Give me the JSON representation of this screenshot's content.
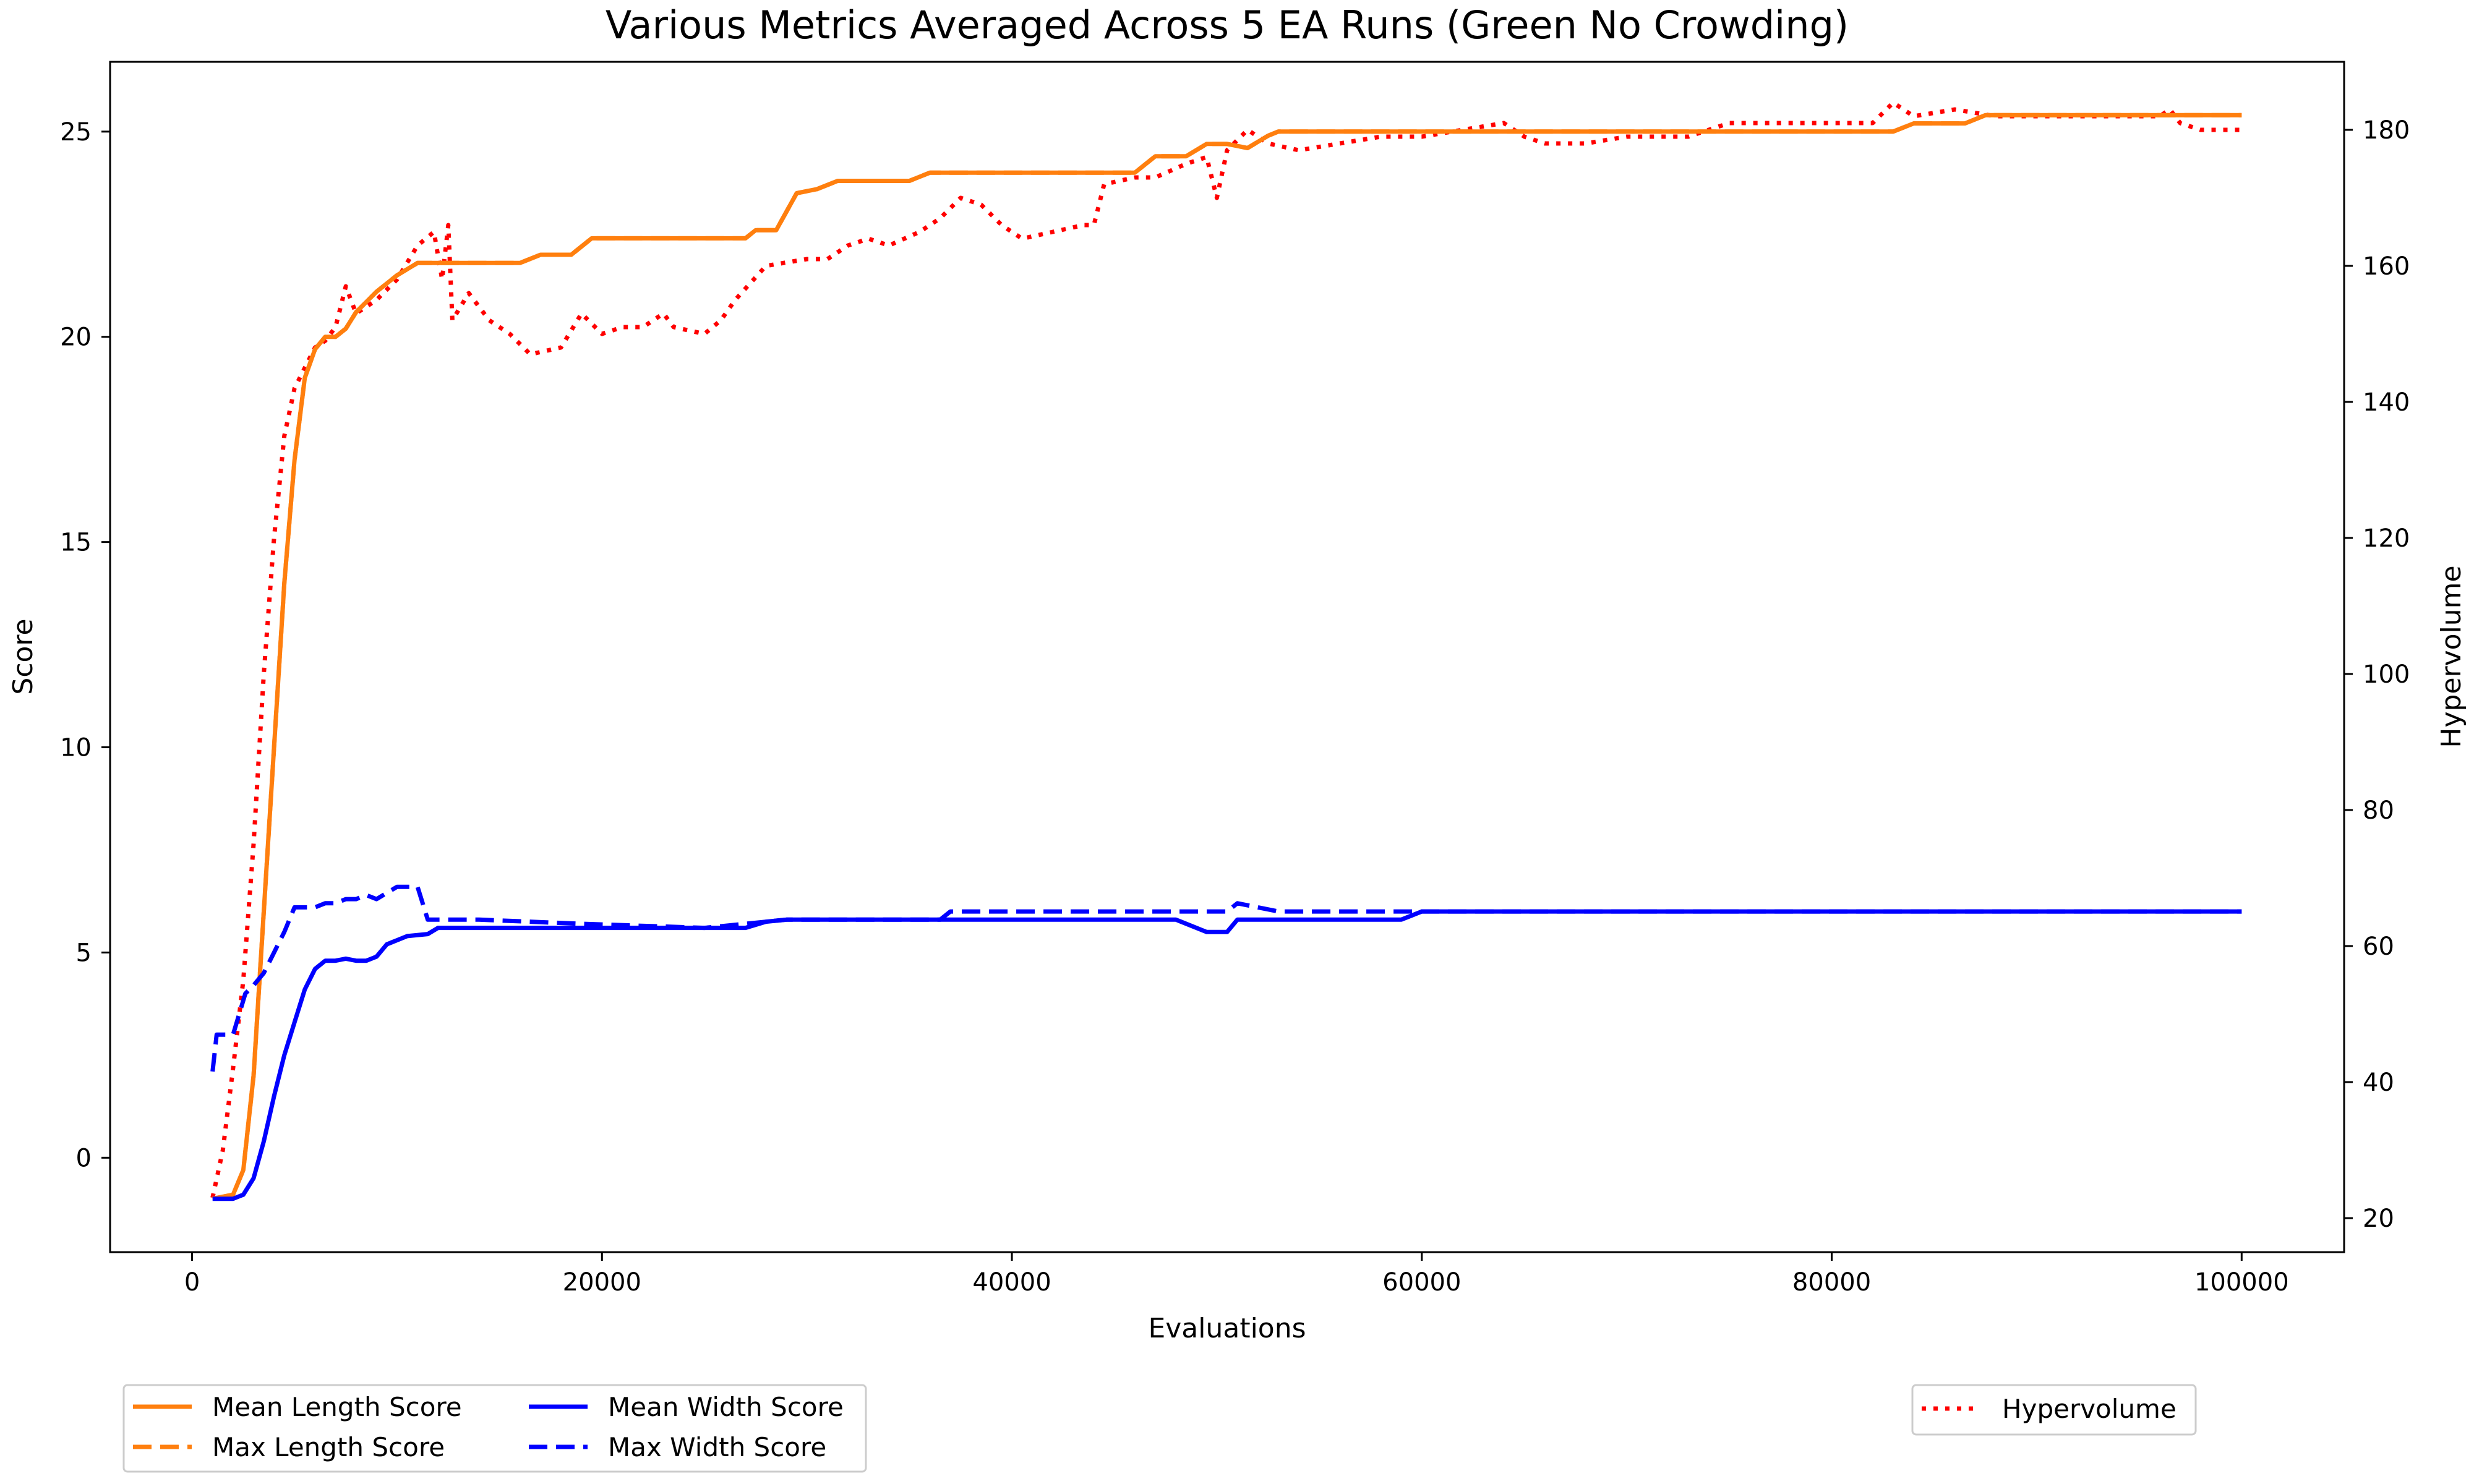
{
  "chart_data": {
    "type": "line",
    "title": "Various Metrics Averaged Across 5 EA Runs (Green No Crowding)",
    "xlabel": "Evaluations",
    "ylabel": "Score",
    "y2label": "Hypervolume",
    "xlim": [
      -4000,
      105000
    ],
    "ylim": [
      -2.3,
      26.7
    ],
    "y2lim": [
      15,
      190
    ],
    "xticks": [
      0,
      20000,
      40000,
      60000,
      80000,
      100000
    ],
    "yticks": [
      0,
      5,
      10,
      15,
      20,
      25
    ],
    "y2ticks": [
      20,
      40,
      60,
      80,
      100,
      120,
      140,
      160,
      180
    ],
    "grid": false,
    "legend_left_placement": "bottom-left, below axes",
    "legend_right_placement": "bottom-right, below axes",
    "series": [
      {
        "name": "Mean Length Score",
        "axis": "left",
        "color": "#ff7f0e",
        "style": "solid",
        "points": [
          [
            1000,
            -1
          ],
          [
            2000,
            -0.9
          ],
          [
            2500,
            -0.3
          ],
          [
            3000,
            2
          ],
          [
            3500,
            6
          ],
          [
            4000,
            10
          ],
          [
            4500,
            14
          ],
          [
            5000,
            17
          ],
          [
            5500,
            19
          ],
          [
            6000,
            19.7
          ],
          [
            6500,
            20
          ],
          [
            7000,
            20
          ],
          [
            7500,
            20.2
          ],
          [
            8000,
            20.6
          ],
          [
            9000,
            21.1
          ],
          [
            10000,
            21.5
          ],
          [
            11000,
            21.8
          ],
          [
            12000,
            21.8
          ],
          [
            14000,
            21.8
          ],
          [
            16000,
            21.8
          ],
          [
            17000,
            22
          ],
          [
            18500,
            22
          ],
          [
            19500,
            22.4
          ],
          [
            27000,
            22.4
          ],
          [
            27500,
            22.6
          ],
          [
            28500,
            22.6
          ],
          [
            29500,
            23.5
          ],
          [
            30500,
            23.6
          ],
          [
            31500,
            23.8
          ],
          [
            35000,
            23.8
          ],
          [
            36000,
            24
          ],
          [
            46000,
            24
          ],
          [
            47000,
            24.4
          ],
          [
            48500,
            24.4
          ],
          [
            49500,
            24.7
          ],
          [
            50500,
            24.7
          ],
          [
            51500,
            24.6
          ],
          [
            52500,
            24.9
          ],
          [
            53000,
            25
          ],
          [
            82000,
            25
          ],
          [
            83000,
            25
          ],
          [
            84000,
            25.2
          ],
          [
            86500,
            25.2
          ],
          [
            87500,
            25.4
          ],
          [
            100000,
            25.4
          ]
        ]
      },
      {
        "name": "Max Length Score",
        "axis": "left",
        "color": "#ff7f0e",
        "style": "dashed",
        "points": [
          [
            1000,
            -1
          ],
          [
            2000,
            -0.9
          ],
          [
            2500,
            -0.3
          ],
          [
            3000,
            2
          ],
          [
            3500,
            6
          ],
          [
            4000,
            10
          ],
          [
            4500,
            14
          ],
          [
            5000,
            17
          ],
          [
            5500,
            19
          ],
          [
            6000,
            19.7
          ],
          [
            6500,
            20
          ],
          [
            7000,
            20
          ],
          [
            7500,
            20.2
          ],
          [
            8000,
            20.6
          ],
          [
            9000,
            21.1
          ],
          [
            10000,
            21.5
          ],
          [
            11000,
            21.8
          ],
          [
            12000,
            21.8
          ],
          [
            14000,
            21.8
          ],
          [
            16000,
            21.8
          ],
          [
            17000,
            22
          ],
          [
            18500,
            22
          ],
          [
            19500,
            22.4
          ],
          [
            27000,
            22.4
          ],
          [
            27500,
            22.6
          ],
          [
            28500,
            22.6
          ],
          [
            29500,
            23.5
          ],
          [
            30500,
            23.6
          ],
          [
            31500,
            23.8
          ],
          [
            35000,
            23.8
          ],
          [
            36000,
            24
          ],
          [
            46000,
            24
          ],
          [
            47000,
            24.4
          ],
          [
            48500,
            24.4
          ],
          [
            49500,
            24.7
          ],
          [
            50500,
            24.7
          ],
          [
            51500,
            24.6
          ],
          [
            52500,
            24.9
          ],
          [
            53000,
            25
          ],
          [
            82000,
            25
          ],
          [
            83000,
            25
          ],
          [
            84000,
            25.2
          ],
          [
            86500,
            25.2
          ],
          [
            87500,
            25.4
          ],
          [
            100000,
            25.4
          ]
        ]
      },
      {
        "name": "Mean Width Score",
        "axis": "left",
        "color": "#0000ff",
        "style": "solid",
        "points": [
          [
            1000,
            -1
          ],
          [
            2000,
            -1
          ],
          [
            2500,
            -0.9
          ],
          [
            3000,
            -0.5
          ],
          [
            3500,
            0.4
          ],
          [
            4000,
            1.5
          ],
          [
            4500,
            2.5
          ],
          [
            5000,
            3.3
          ],
          [
            5500,
            4.1
          ],
          [
            6000,
            4.6
          ],
          [
            6500,
            4.8
          ],
          [
            7000,
            4.8
          ],
          [
            7500,
            4.85
          ],
          [
            8000,
            4.8
          ],
          [
            8500,
            4.8
          ],
          [
            9000,
            4.9
          ],
          [
            9500,
            5.2
          ],
          [
            10500,
            5.4
          ],
          [
            11500,
            5.45
          ],
          [
            12000,
            5.6
          ],
          [
            27000,
            5.6
          ],
          [
            28000,
            5.75
          ],
          [
            29000,
            5.8
          ],
          [
            48000,
            5.8
          ],
          [
            49500,
            5.5
          ],
          [
            50500,
            5.5
          ],
          [
            51000,
            5.8
          ],
          [
            59000,
            5.8
          ],
          [
            60000,
            6
          ],
          [
            100000,
            6
          ]
        ]
      },
      {
        "name": "Max Width Score",
        "axis": "left",
        "color": "#0000ff",
        "style": "dashed",
        "points": [
          [
            1000,
            2.1
          ],
          [
            1200,
            3
          ],
          [
            2000,
            3
          ],
          [
            2300,
            3.5
          ],
          [
            2600,
            4
          ],
          [
            3000,
            4.2
          ],
          [
            3500,
            4.5
          ],
          [
            4000,
            5
          ],
          [
            4500,
            5.5
          ],
          [
            5000,
            6.1
          ],
          [
            6000,
            6.1
          ],
          [
            6500,
            6.2
          ],
          [
            7000,
            6.2
          ],
          [
            7500,
            6.3
          ],
          [
            8000,
            6.3
          ],
          [
            8500,
            6.4
          ],
          [
            9000,
            6.3
          ],
          [
            10000,
            6.6
          ],
          [
            11000,
            6.6
          ],
          [
            11500,
            5.8
          ],
          [
            14000,
            5.8
          ],
          [
            19000,
            5.7
          ],
          [
            25000,
            5.6
          ],
          [
            27000,
            5.7
          ],
          [
            29000,
            5.8
          ],
          [
            36500,
            5.8
          ],
          [
            37000,
            6
          ],
          [
            44000,
            6
          ],
          [
            44500,
            6
          ],
          [
            50500,
            6
          ],
          [
            51000,
            6.2
          ],
          [
            52000,
            6.1
          ],
          [
            53000,
            6
          ],
          [
            60000,
            6
          ],
          [
            100000,
            6
          ]
        ]
      },
      {
        "name": "Hypervolume",
        "axis": "right",
        "color": "#ff0000",
        "style": "dotted",
        "points": [
          [
            1000,
            23
          ],
          [
            1500,
            30
          ],
          [
            2000,
            42
          ],
          [
            2500,
            55
          ],
          [
            3000,
            75
          ],
          [
            3500,
            100
          ],
          [
            4000,
            120
          ],
          [
            4500,
            135
          ],
          [
            5000,
            142
          ],
          [
            5500,
            145
          ],
          [
            6000,
            148
          ],
          [
            6500,
            149
          ],
          [
            7000,
            151
          ],
          [
            7500,
            157
          ],
          [
            8000,
            153
          ],
          [
            9000,
            155
          ],
          [
            10000,
            158
          ],
          [
            11000,
            163
          ],
          [
            11800,
            165
          ],
          [
            12200,
            158
          ],
          [
            12500,
            166
          ],
          [
            12700,
            152
          ],
          [
            13500,
            156
          ],
          [
            14500,
            152
          ],
          [
            15500,
            150
          ],
          [
            16500,
            147
          ],
          [
            18000,
            148
          ],
          [
            19000,
            153
          ],
          [
            20000,
            150
          ],
          [
            21000,
            151
          ],
          [
            22000,
            151
          ],
          [
            23000,
            153
          ],
          [
            23500,
            151
          ],
          [
            25000,
            150
          ],
          [
            25800,
            152
          ],
          [
            26500,
            155
          ],
          [
            28000,
            160
          ],
          [
            30000,
            161
          ],
          [
            31000,
            161
          ],
          [
            32000,
            163
          ],
          [
            33000,
            164
          ],
          [
            34000,
            163
          ],
          [
            35500,
            165
          ],
          [
            36500,
            167
          ],
          [
            37500,
            170
          ],
          [
            38500,
            169
          ],
          [
            39500,
            166
          ],
          [
            40500,
            164
          ],
          [
            42000,
            165
          ],
          [
            43500,
            166
          ],
          [
            44000,
            166
          ],
          [
            44500,
            172
          ],
          [
            46000,
            173
          ],
          [
            47000,
            173
          ],
          [
            48500,
            175
          ],
          [
            49500,
            176
          ],
          [
            50000,
            170
          ],
          [
            50500,
            177
          ],
          [
            51500,
            180
          ],
          [
            52500,
            178
          ],
          [
            54000,
            177
          ],
          [
            56000,
            178
          ],
          [
            58000,
            179
          ],
          [
            60000,
            179
          ],
          [
            62000,
            180
          ],
          [
            64000,
            181
          ],
          [
            65000,
            179
          ],
          [
            66000,
            178
          ],
          [
            68000,
            178
          ],
          [
            70000,
            179
          ],
          [
            73000,
            179
          ],
          [
            75000,
            181
          ],
          [
            78000,
            181
          ],
          [
            80000,
            181
          ],
          [
            82000,
            181
          ],
          [
            83000,
            184
          ],
          [
            84000,
            182
          ],
          [
            86000,
            183
          ],
          [
            88000,
            182
          ],
          [
            90000,
            182
          ],
          [
            94000,
            182
          ],
          [
            96000,
            182
          ],
          [
            96500,
            183
          ],
          [
            97000,
            181
          ],
          [
            98000,
            180
          ],
          [
            100000,
            180
          ]
        ]
      }
    ],
    "legend_left": [
      {
        "label": "Mean Length Score",
        "color": "#ff7f0e",
        "style": "solid"
      },
      {
        "label": "Max Length Score",
        "color": "#ff7f0e",
        "style": "dashed"
      },
      {
        "label": "Mean Width Score",
        "color": "#0000ff",
        "style": "solid"
      },
      {
        "label": "Max Width Score",
        "color": "#0000ff",
        "style": "dashed"
      }
    ],
    "legend_right": [
      {
        "label": "Hypervolume",
        "color": "#ff0000",
        "style": "dotted"
      }
    ]
  }
}
